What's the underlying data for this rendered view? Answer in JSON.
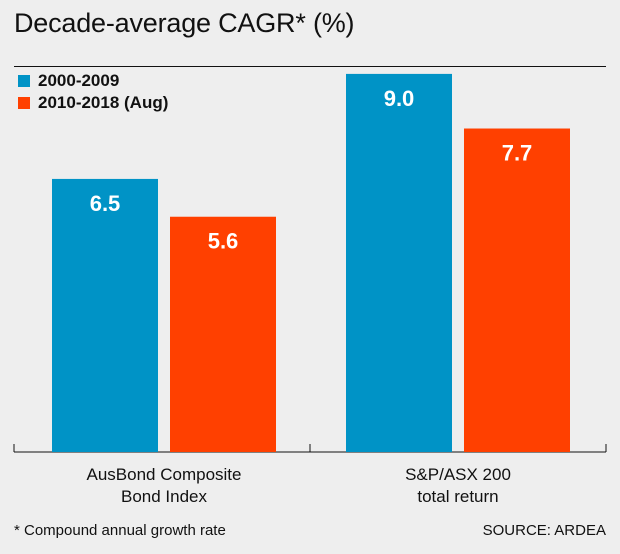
{
  "title": "Decade-average CAGR* (%)",
  "footnote": "* Compound annual growth rate",
  "source": "SOURCE: ARDEA",
  "colors": {
    "series1": "#0093c6",
    "series2": "#ff4000",
    "background": "#eeeeee",
    "text": "#111111"
  },
  "chart_data": {
    "type": "bar",
    "title": "Decade-average CAGR* (%)",
    "categories": [
      [
        "AusBond Composite",
        "Bond Index"
      ],
      [
        "S&P/ASX 200",
        "total return"
      ]
    ],
    "series": [
      {
        "name": "2000-2009",
        "values": [
          6.5,
          9.0
        ]
      },
      {
        "name": "2010-2018 (Aug)",
        "values": [
          5.6,
          7.7
        ]
      }
    ],
    "ylim": [
      0,
      10
    ],
    "legend": "top-left",
    "grid": false
  }
}
